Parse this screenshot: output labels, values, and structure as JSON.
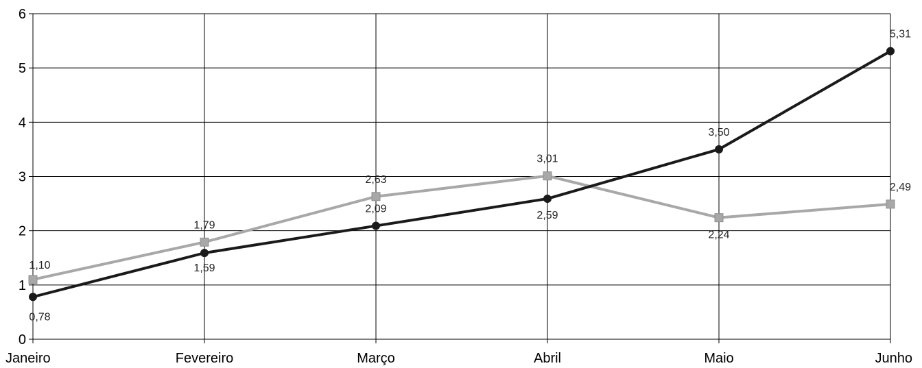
{
  "chart_data": {
    "type": "line",
    "title": "",
    "xlabel": "",
    "ylabel": "",
    "categories": [
      "Janeiro",
      "Fevereiro",
      "Março",
      "Abril",
      "Maio",
      "Junho"
    ],
    "ylim": [
      0,
      6
    ],
    "yticks": [
      "0",
      "1",
      "2",
      "3",
      "4",
      "5",
      "6"
    ],
    "grid": true,
    "legend": "none",
    "series": [
      {
        "values": [
          0.78,
          1.59,
          2.09,
          2.59,
          3.5,
          5.31
        ],
        "labels": [
          "0,78",
          "1,59",
          "2,09",
          "2,59",
          "3,50",
          "5,31"
        ],
        "color": "#1a1a1a",
        "marker": "circle"
      },
      {
        "values": [
          1.1,
          1.79,
          2.63,
          3.01,
          2.24,
          2.49
        ],
        "labels": [
          "1,10",
          "1,79",
          "2,63",
          "3,01",
          "2,24",
          "2,49"
        ],
        "color": "#a8a8a8",
        "marker": "square"
      }
    ]
  }
}
